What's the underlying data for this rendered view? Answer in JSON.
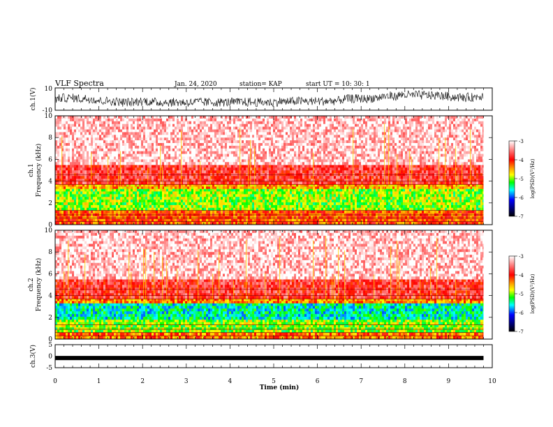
{
  "header": {
    "title": "VLF Spectra",
    "date": "Jan. 24, 2020",
    "station": "station= KAP",
    "start": "start  UT =   10: 30: 1"
  },
  "chart_data": [
    {
      "type": "line",
      "panel": "ch1-waveform",
      "ylabel": "ch.1(V)",
      "ylim": [
        -10,
        10
      ],
      "yticks": [
        "10",
        "-10"
      ],
      "xlim": [
        0,
        10
      ],
      "series": [
        {
          "values_note": "noisy waveform",
          "typical_range": [
            -6,
            8
          ]
        }
      ]
    },
    {
      "type": "heatmap",
      "panel": "ch1-spectrogram",
      "ylabel": "ch.1\nFrequency (kHz)",
      "ylabel_lines": [
        "ch.1",
        "Frequency  (kHz)"
      ],
      "ylim": [
        0,
        10
      ],
      "yticks": [
        "0",
        "2",
        "4",
        "6",
        "8",
        "10"
      ],
      "xlim": [
        0,
        9.8
      ],
      "bands": [
        {
          "f_range": [
            0,
            1.3
          ],
          "level": -4.2
        },
        {
          "f_range": [
            1.3,
            3.3
          ],
          "level": -5.0
        },
        {
          "f_range": [
            3.3,
            3.7
          ],
          "level": -4.5
        },
        {
          "f_range": [
            3.7,
            5.5
          ],
          "level": -3.8
        },
        {
          "f_range": [
            5.5,
            10
          ],
          "level": -3.2
        }
      ],
      "colorbar": {
        "label": "log(PSD)(V²/Hz)",
        "ticks": [
          "-3",
          "-4",
          "-5",
          "-6",
          "-7"
        ],
        "range": [
          -7,
          -3
        ]
      }
    },
    {
      "type": "heatmap",
      "panel": "ch2-spectrogram",
      "ylabel_lines": [
        "ch.2",
        "Frequency  (kHz)"
      ],
      "ylim": [
        0,
        10
      ],
      "yticks": [
        "0",
        "2",
        "4",
        "6",
        "8",
        "10"
      ],
      "xlim": [
        0,
        9.8
      ],
      "bands": [
        {
          "f_range": [
            0,
            0.6
          ],
          "level": -4.3
        },
        {
          "f_range": [
            0.6,
            1.8
          ],
          "level": -5.0
        },
        {
          "f_range": [
            1.8,
            3.3
          ],
          "level": -5.5
        },
        {
          "f_range": [
            3.3,
            3.7
          ],
          "level": -4.4
        },
        {
          "f_range": [
            3.7,
            5.5
          ],
          "level": -3.8
        },
        {
          "f_range": [
            5.5,
            10
          ],
          "level": -3.2
        }
      ],
      "colorbar": {
        "label": "log(PSD)(V²/Hz)",
        "ticks": [
          "-3",
          "-4",
          "-5",
          "-6",
          "-7"
        ],
        "range": [
          -7,
          -3
        ]
      }
    },
    {
      "type": "line",
      "panel": "ch3-waveform",
      "ylabel": "ch.3(V)",
      "ylim": [
        -5,
        5
      ],
      "yticks": [
        "5",
        "0",
        "-5"
      ],
      "xlim": [
        0,
        10
      ],
      "series": [
        {
          "values_note": "constant",
          "value": -0.8
        }
      ]
    }
  ],
  "xaxis": {
    "label": "Time  (min)",
    "ticks": [
      "0",
      "1",
      "2",
      "3",
      "4",
      "5",
      "6",
      "7",
      "8",
      "9",
      "10"
    ],
    "range": [
      0,
      10
    ]
  },
  "colors": {
    "axis": "#000000",
    "trace": "#000000"
  }
}
